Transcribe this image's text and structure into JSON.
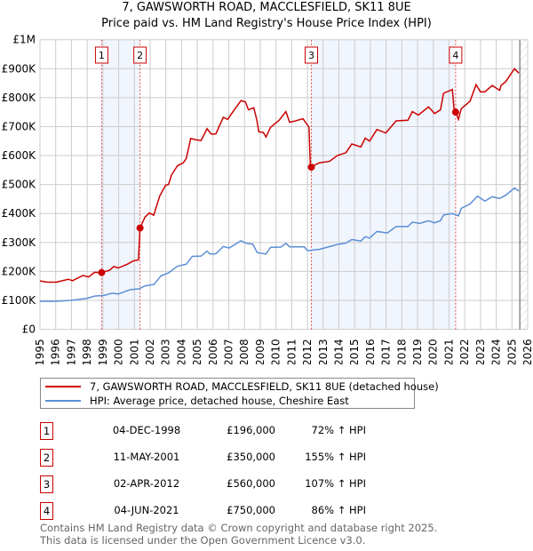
{
  "chart_data": {
    "type": "line",
    "title": "7, GAWSWORTH ROAD, MACCLESFIELD, SK11 8UE",
    "subtitle": "Price paid vs. HM Land Registry's House Price Index (HPI)",
    "xlim": [
      1995,
      2026
    ],
    "ylim": [
      0,
      1000000
    ],
    "y_ticks": [
      {
        "v": 0,
        "label": "£0"
      },
      {
        "v": 100000,
        "label": "£100K"
      },
      {
        "v": 200000,
        "label": "£200K"
      },
      {
        "v": 300000,
        "label": "£300K"
      },
      {
        "v": 400000,
        "label": "£400K"
      },
      {
        "v": 500000,
        "label": "£500K"
      },
      {
        "v": 600000,
        "label": "£600K"
      },
      {
        "v": 700000,
        "label": "£700K"
      },
      {
        "v": 800000,
        "label": "£800K"
      },
      {
        "v": 900000,
        "label": "£900K"
      },
      {
        "v": 1000000,
        "label": "£1M"
      }
    ],
    "x_ticks": [
      "1995",
      "1996",
      "1997",
      "1998",
      "1999",
      "2000",
      "2001",
      "2002",
      "2003",
      "2004",
      "2005",
      "2006",
      "2007",
      "2008",
      "2009",
      "2010",
      "2011",
      "2012",
      "2013",
      "2014",
      "2015",
      "2016",
      "2017",
      "2018",
      "2019",
      "2020",
      "2021",
      "2022",
      "2023",
      "2024",
      "2025",
      "2026"
    ],
    "grid": true,
    "data_end": 2025.5,
    "series": [
      {
        "name": "7, GAWSWORTH ROAD, MACCLESFIELD, SK11 8UE (detached house)",
        "color": "#cc0000",
        "points": [
          [
            1995,
            167000
          ],
          [
            1995.47,
            163000
          ],
          [
            1996.03,
            163000
          ],
          [
            1996.8,
            173000
          ],
          [
            1997.07,
            168000
          ],
          [
            1997.73,
            186000
          ],
          [
            1998.1,
            181000
          ],
          [
            1998.47,
            197000
          ],
          [
            1998.92,
            196000
          ],
          [
            1999.42,
            204000
          ],
          [
            1999.7,
            217000
          ],
          [
            1999.98,
            212000
          ],
          [
            2000.55,
            225000
          ],
          [
            2000.92,
            236000
          ],
          [
            2001.26,
            240000
          ],
          [
            2001.36,
            350000
          ],
          [
            2001.67,
            387000
          ],
          [
            2001.95,
            402000
          ],
          [
            2002.23,
            394000
          ],
          [
            2002.61,
            460000
          ],
          [
            2002.99,
            498000
          ],
          [
            2003.17,
            500000
          ],
          [
            2003.36,
            533000
          ],
          [
            2003.74,
            565000
          ],
          [
            2004.11,
            575000
          ],
          [
            2004.3,
            590000
          ],
          [
            2004.58,
            659000
          ],
          [
            2004.87,
            655000
          ],
          [
            2005.24,
            652000
          ],
          [
            2005.62,
            693000
          ],
          [
            2005.9,
            674000
          ],
          [
            2006.18,
            675000
          ],
          [
            2006.65,
            732000
          ],
          [
            2006.93,
            725000
          ],
          [
            2007.31,
            755000
          ],
          [
            2007.78,
            790000
          ],
          [
            2008.06,
            785000
          ],
          [
            2008.25,
            758000
          ],
          [
            2008.59,
            765000
          ],
          [
            2008.78,
            724000
          ],
          [
            2008.91,
            682000
          ],
          [
            2009.19,
            680000
          ],
          [
            2009.37,
            664000
          ],
          [
            2009.65,
            697000
          ],
          [
            2010.2,
            722000
          ],
          [
            2010.63,
            752000
          ],
          [
            2010.87,
            715000
          ],
          [
            2011.25,
            720000
          ],
          [
            2011.72,
            727000
          ],
          [
            2012.1,
            698000
          ],
          [
            2012.19,
            560000
          ],
          [
            2012.75,
            575000
          ],
          [
            2013.4,
            580000
          ],
          [
            2013.9,
            600000
          ],
          [
            2014.45,
            610000
          ],
          [
            2014.82,
            640000
          ],
          [
            2015.4,
            630000
          ],
          [
            2015.67,
            660000
          ],
          [
            2015.95,
            650000
          ],
          [
            2016.42,
            690000
          ],
          [
            2016.98,
            678000
          ],
          [
            2017.64,
            720000
          ],
          [
            2018.39,
            722000
          ],
          [
            2018.67,
            752000
          ],
          [
            2019.05,
            740000
          ],
          [
            2019.7,
            768000
          ],
          [
            2020.08,
            745000
          ],
          [
            2020.46,
            758000
          ],
          [
            2020.65,
            815000
          ],
          [
            2021.21,
            828000
          ],
          [
            2021.32,
            762000
          ],
          [
            2021.42,
            750000
          ],
          [
            2021.6,
            725000
          ],
          [
            2021.78,
            762000
          ],
          [
            2022.34,
            788000
          ],
          [
            2022.72,
            845000
          ],
          [
            2023.0,
            820000
          ],
          [
            2023.28,
            820000
          ],
          [
            2023.75,
            842000
          ],
          [
            2024.22,
            825000
          ],
          [
            2024.31,
            842000
          ],
          [
            2024.6,
            855000
          ],
          [
            2025.16,
            900000
          ],
          [
            2025.44,
            885000
          ]
        ]
      },
      {
        "name": "HPI: Average price, detached house, Cheshire East",
        "color": "#5b8fd4",
        "points": [
          [
            1995,
            97000
          ],
          [
            1996.0,
            97000
          ],
          [
            1996.97,
            100000
          ],
          [
            1998.0,
            107000
          ],
          [
            1998.48,
            115000
          ],
          [
            1999.04,
            117000
          ],
          [
            1999.6,
            125000
          ],
          [
            1999.98,
            122000
          ],
          [
            2000.73,
            137000
          ],
          [
            2001.3,
            140000
          ],
          [
            2001.67,
            150000
          ],
          [
            2002.24,
            155000
          ],
          [
            2002.7,
            185000
          ],
          [
            2003.17,
            195000
          ],
          [
            2003.74,
            218000
          ],
          [
            2004.3,
            225000
          ],
          [
            2004.68,
            252000
          ],
          [
            2005.24,
            253000
          ],
          [
            2005.62,
            270000
          ],
          [
            2005.81,
            260000
          ],
          [
            2006.18,
            261000
          ],
          [
            2006.65,
            286000
          ],
          [
            2007.03,
            281000
          ],
          [
            2007.78,
            306000
          ],
          [
            2008.06,
            298000
          ],
          [
            2008.53,
            294000
          ],
          [
            2008.81,
            265000
          ],
          [
            2009.37,
            260000
          ],
          [
            2009.65,
            283000
          ],
          [
            2010.31,
            284000
          ],
          [
            2010.63,
            297000
          ],
          [
            2010.87,
            285000
          ],
          [
            2011.8,
            285000
          ],
          [
            2012.0,
            272000
          ],
          [
            2012.75,
            276000
          ],
          [
            2013.9,
            293000
          ],
          [
            2014.45,
            298000
          ],
          [
            2014.82,
            310000
          ],
          [
            2015.4,
            305000
          ],
          [
            2015.67,
            320000
          ],
          [
            2015.95,
            315000
          ],
          [
            2016.42,
            338000
          ],
          [
            2017.08,
            333000
          ],
          [
            2017.64,
            355000
          ],
          [
            2018.39,
            355000
          ],
          [
            2018.67,
            370000
          ],
          [
            2019.14,
            366000
          ],
          [
            2019.7,
            375000
          ],
          [
            2020.08,
            368000
          ],
          [
            2020.46,
            375000
          ],
          [
            2020.65,
            395000
          ],
          [
            2021.21,
            400000
          ],
          [
            2021.6,
            392000
          ],
          [
            2021.78,
            418000
          ],
          [
            2022.34,
            433000
          ],
          [
            2022.81,
            460000
          ],
          [
            2023.28,
            443000
          ],
          [
            2023.75,
            458000
          ],
          [
            2024.22,
            452000
          ],
          [
            2024.6,
            463000
          ],
          [
            2025.16,
            488000
          ],
          [
            2025.44,
            478000
          ]
        ]
      }
    ],
    "sales": [
      {
        "n": "1",
        "date": "04-DEC-1998",
        "x": 1998.92,
        "price": 196000,
        "price_label": "£196,000",
        "hpi": "72% ↑ HPI"
      },
      {
        "n": "2",
        "date": "11-MAY-2001",
        "x": 2001.36,
        "price": 350000,
        "price_label": "£350,000",
        "hpi": "155% ↑ HPI"
      },
      {
        "n": "3",
        "date": "02-APR-2012",
        "x": 2012.25,
        "price": 560000,
        "price_label": "£560,000",
        "hpi": "107% ↑ HPI"
      },
      {
        "n": "4",
        "date": "04-JUN-2021",
        "x": 2021.42,
        "price": 750000,
        "price_label": "£750,000",
        "hpi": "86% ↑ HPI"
      }
    ],
    "shaded_spans": [
      [
        1998.92,
        2001.36
      ],
      [
        2012.25,
        2021.42
      ]
    ],
    "legend_position": "below"
  },
  "footer": {
    "line1": "Contains HM Land Registry data © Crown copyright and database right 2025.",
    "line2": "This data is licensed under the Open Government Licence v3.0."
  }
}
